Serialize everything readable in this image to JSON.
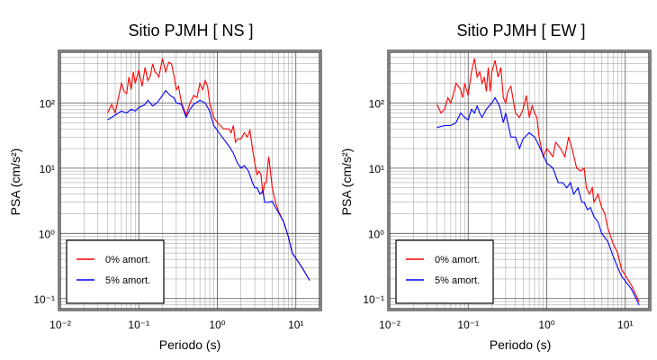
{
  "chart_data": [
    {
      "type": "line",
      "title": "Sitio PJMH [ NS ]",
      "xlabel": "Periodo (s)",
      "ylabel": "PSA (cm/s²)",
      "xscale": "log",
      "yscale": "log",
      "xlim": [
        0.01,
        20
      ],
      "ylim": [
        0.07,
        600
      ],
      "x_ticks": [
        "10⁻²",
        "10⁻¹",
        "10⁰",
        "10¹"
      ],
      "y_ticks": [
        "10⁻¹",
        "10⁰",
        "10¹",
        "10²"
      ],
      "grid": true,
      "legend_position": "bottom-left",
      "series": [
        {
          "name": "0% amort.",
          "color": "#ff0000",
          "points": [
            [
              0.04,
              70
            ],
            [
              0.045,
              95
            ],
            [
              0.05,
              70
            ],
            [
              0.055,
              120
            ],
            [
              0.06,
              200
            ],
            [
              0.065,
              150
            ],
            [
              0.07,
              140
            ],
            [
              0.075,
              250
            ],
            [
              0.08,
              160
            ],
            [
              0.085,
              300
            ],
            [
              0.09,
              200
            ],
            [
              0.1,
              320
            ],
            [
              0.11,
              180
            ],
            [
              0.12,
              350
            ],
            [
              0.13,
              220
            ],
            [
              0.14,
              260
            ],
            [
              0.15,
              400
            ],
            [
              0.16,
              300
            ],
            [
              0.17,
              280
            ],
            [
              0.18,
              250
            ],
            [
              0.2,
              480
            ],
            [
              0.22,
              300
            ],
            [
              0.24,
              420
            ],
            [
              0.26,
              400
            ],
            [
              0.28,
              260
            ],
            [
              0.3,
              160
            ],
            [
              0.32,
              180
            ],
            [
              0.35,
              100
            ],
            [
              0.4,
              65
            ],
            [
              0.45,
              100
            ],
            [
              0.5,
              130
            ],
            [
              0.55,
              120
            ],
            [
              0.6,
              200
            ],
            [
              0.65,
              160
            ],
            [
              0.7,
              220
            ],
            [
              0.75,
              180
            ],
            [
              0.8,
              100
            ],
            [
              0.9,
              60
            ],
            [
              1.0,
              50
            ],
            [
              1.2,
              40
            ],
            [
              1.4,
              40
            ],
            [
              1.5,
              35
            ],
            [
              1.6,
              45
            ],
            [
              1.7,
              25
            ],
            [
              1.8,
              28
            ],
            [
              2.0,
              28
            ],
            [
              2.2,
              35
            ],
            [
              2.4,
              30
            ],
            [
              2.6,
              38
            ],
            [
              2.8,
              20
            ],
            [
              3.0,
              12
            ],
            [
              3.2,
              8
            ],
            [
              3.4,
              9
            ],
            [
              3.6,
              8
            ],
            [
              3.8,
              4
            ],
            [
              4.0,
              6
            ],
            [
              4.2,
              6
            ],
            [
              4.5,
              15
            ],
            [
              4.7,
              10
            ],
            [
              5.0,
              5
            ],
            [
              5.5,
              3
            ],
            [
              6.0,
              2.2
            ],
            [
              7.0,
              1.5
            ],
            [
              8.0,
              0.9
            ],
            [
              9.0,
              0.5
            ],
            [
              12.0,
              0.3
            ],
            [
              15.0,
              0.19
            ]
          ]
        },
        {
          "name": "5% amort.",
          "color": "#0000ff",
          "points": [
            [
              0.04,
              55
            ],
            [
              0.05,
              65
            ],
            [
              0.06,
              75
            ],
            [
              0.07,
              70
            ],
            [
              0.08,
              80
            ],
            [
              0.09,
              75
            ],
            [
              0.1,
              85
            ],
            [
              0.11,
              90
            ],
            [
              0.12,
              95
            ],
            [
              0.13,
              110
            ],
            [
              0.14,
              100
            ],
            [
              0.15,
              90
            ],
            [
              0.17,
              100
            ],
            [
              0.2,
              130
            ],
            [
              0.22,
              155
            ],
            [
              0.25,
              130
            ],
            [
              0.28,
              120
            ],
            [
              0.3,
              100
            ],
            [
              0.35,
              95
            ],
            [
              0.4,
              60
            ],
            [
              0.45,
              80
            ],
            [
              0.5,
              95
            ],
            [
              0.6,
              110
            ],
            [
              0.7,
              100
            ],
            [
              0.8,
              75
            ],
            [
              0.9,
              45
            ],
            [
              1.0,
              38
            ],
            [
              1.2,
              28
            ],
            [
              1.4,
              22
            ],
            [
              1.6,
              17
            ],
            [
              1.8,
              12
            ],
            [
              2.0,
              10
            ],
            [
              2.2,
              11
            ],
            [
              2.5,
              9
            ],
            [
              2.8,
              6
            ],
            [
              3.0,
              5
            ],
            [
              3.2,
              5
            ],
            [
              3.5,
              4
            ],
            [
              3.8,
              4.5
            ],
            [
              4.0,
              3
            ],
            [
              4.5,
              3
            ],
            [
              5.0,
              3.1
            ],
            [
              5.5,
              2.5
            ],
            [
              6.0,
              2.1
            ],
            [
              7.0,
              1.5
            ],
            [
              8.0,
              0.9
            ],
            [
              9.0,
              0.5
            ],
            [
              12.0,
              0.3
            ],
            [
              15.0,
              0.19
            ]
          ]
        }
      ]
    },
    {
      "type": "line",
      "title": "Sitio PJMH [ EW ]",
      "xlabel": "Periodo (s)",
      "ylabel": "PSA (cm/s²)",
      "xscale": "log",
      "yscale": "log",
      "xlim": [
        0.01,
        20
      ],
      "ylim": [
        0.07,
        600
      ],
      "x_ticks": [
        "10⁻²",
        "10⁻¹",
        "10⁰",
        "10¹"
      ],
      "y_ticks": [
        "10⁻¹",
        "10⁰",
        "10¹",
        "10²"
      ],
      "grid": true,
      "legend_position": "bottom-left",
      "series": [
        {
          "name": "0% amort.",
          "color": "#ff0000",
          "points": [
            [
              0.04,
              95
            ],
            [
              0.045,
              70
            ],
            [
              0.05,
              80
            ],
            [
              0.055,
              120
            ],
            [
              0.06,
              100
            ],
            [
              0.065,
              140
            ],
            [
              0.07,
              200
            ],
            [
              0.075,
              180
            ],
            [
              0.08,
              160
            ],
            [
              0.085,
              120
            ],
            [
              0.09,
              200
            ],
            [
              0.1,
              130
            ],
            [
              0.11,
              300
            ],
            [
              0.12,
              480
            ],
            [
              0.13,
              250
            ],
            [
              0.14,
              300
            ],
            [
              0.15,
              200
            ],
            [
              0.16,
              250
            ],
            [
              0.17,
              150
            ],
            [
              0.18,
              350
            ],
            [
              0.19,
              150
            ],
            [
              0.2,
              300
            ],
            [
              0.22,
              450
            ],
            [
              0.24,
              250
            ],
            [
              0.26,
              350
            ],
            [
              0.28,
              120
            ],
            [
              0.3,
              100
            ],
            [
              0.32,
              150
            ],
            [
              0.35,
              180
            ],
            [
              0.38,
              100
            ],
            [
              0.4,
              70
            ],
            [
              0.45,
              60
            ],
            [
              0.5,
              80
            ],
            [
              0.55,
              130
            ],
            [
              0.6,
              60
            ],
            [
              0.65,
              90
            ],
            [
              0.7,
              70
            ],
            [
              0.75,
              60
            ],
            [
              0.8,
              30
            ],
            [
              0.9,
              15
            ],
            [
              1.0,
              20
            ],
            [
              1.2,
              15
            ],
            [
              1.3,
              25
            ],
            [
              1.5,
              20
            ],
            [
              1.7,
              15
            ],
            [
              1.9,
              30
            ],
            [
              2.1,
              20
            ],
            [
              2.4,
              10
            ],
            [
              2.7,
              9
            ],
            [
              3.0,
              10
            ],
            [
              3.2,
              5
            ],
            [
              3.5,
              4
            ],
            [
              3.8,
              5
            ],
            [
              4.0,
              3
            ],
            [
              4.5,
              4
            ],
            [
              5.0,
              2.5
            ],
            [
              5.5,
              2.0
            ],
            [
              6.0,
              1.2
            ],
            [
              7.0,
              0.7
            ],
            [
              8.0,
              0.5
            ],
            [
              9.0,
              0.28
            ],
            [
              12.0,
              0.16
            ],
            [
              15.0,
              0.09
            ]
          ]
        },
        {
          "name": "5% amort.",
          "color": "#0000ff",
          "points": [
            [
              0.04,
              42
            ],
            [
              0.05,
              45
            ],
            [
              0.06,
              45
            ],
            [
              0.07,
              50
            ],
            [
              0.08,
              70
            ],
            [
              0.09,
              60
            ],
            [
              0.1,
              55
            ],
            [
              0.11,
              80
            ],
            [
              0.12,
              70
            ],
            [
              0.13,
              90
            ],
            [
              0.14,
              70
            ],
            [
              0.15,
              60
            ],
            [
              0.17,
              80
            ],
            [
              0.2,
              100
            ],
            [
              0.22,
              120
            ],
            [
              0.25,
              90
            ],
            [
              0.28,
              50
            ],
            [
              0.3,
              70
            ],
            [
              0.35,
              30
            ],
            [
              0.4,
              30
            ],
            [
              0.45,
              20
            ],
            [
              0.5,
              28
            ],
            [
              0.6,
              35
            ],
            [
              0.7,
              30
            ],
            [
              0.8,
              22
            ],
            [
              1.0,
              12
            ],
            [
              1.2,
              10
            ],
            [
              1.4,
              6
            ],
            [
              1.6,
              6
            ],
            [
              1.8,
              5
            ],
            [
              2.0,
              6
            ],
            [
              2.2,
              4
            ],
            [
              2.5,
              5
            ],
            [
              2.8,
              3
            ],
            [
              3.0,
              3
            ],
            [
              3.3,
              2.3
            ],
            [
              3.6,
              2.5
            ],
            [
              4.0,
              1.8
            ],
            [
              4.5,
              1.5
            ],
            [
              5.0,
              1.0
            ],
            [
              6.0,
              0.75
            ],
            [
              7.0,
              0.45
            ],
            [
              8.0,
              0.3
            ],
            [
              9.0,
              0.22
            ],
            [
              12.0,
              0.14
            ],
            [
              15.0,
              0.08
            ]
          ]
        }
      ]
    }
  ]
}
